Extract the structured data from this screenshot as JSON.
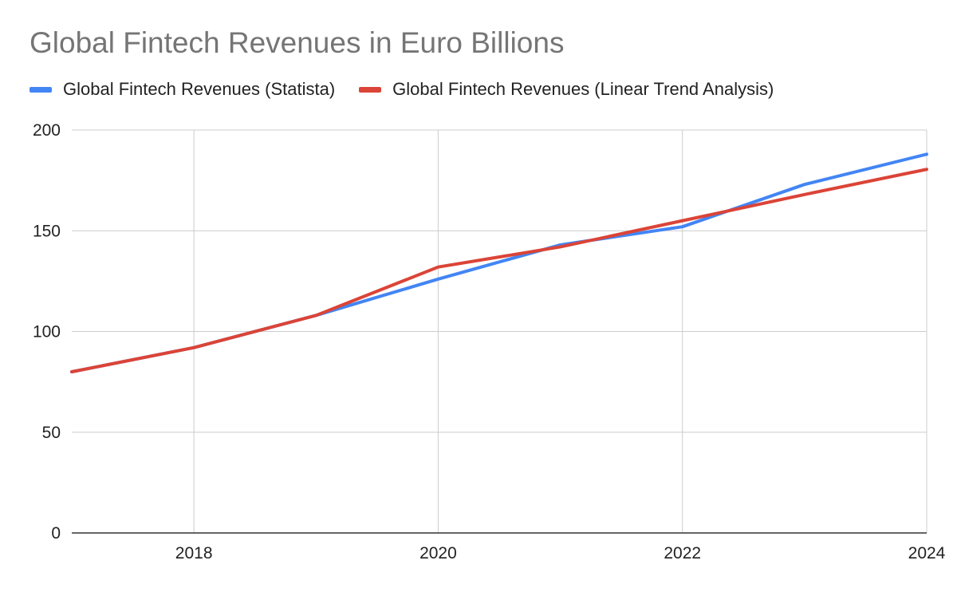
{
  "chart_data": {
    "type": "line",
    "title": "Global Fintech Revenues in Euro Billions",
    "xlabel": "",
    "ylabel": "",
    "x": [
      2017,
      2018,
      2019,
      2020,
      2021,
      2022,
      2023,
      2024
    ],
    "xlim": [
      2017,
      2024
    ],
    "ylim": [
      0,
      200
    ],
    "x_ticks": [
      2018,
      2020,
      2022,
      2024
    ],
    "y_ticks": [
      0,
      50,
      100,
      150,
      200
    ],
    "grid": true,
    "legend_position": "top",
    "series": [
      {
        "name": "Global Fintech Revenues (Statista)",
        "color": "#4285f4",
        "values": [
          80,
          92,
          108,
          126,
          143,
          152,
          173,
          188
        ]
      },
      {
        "name": "Global Fintech Revenues (Linear Trend Analysis)",
        "color": "#db4437",
        "values": [
          80,
          92,
          108,
          132,
          142,
          155,
          168,
          180.5
        ]
      }
    ]
  }
}
